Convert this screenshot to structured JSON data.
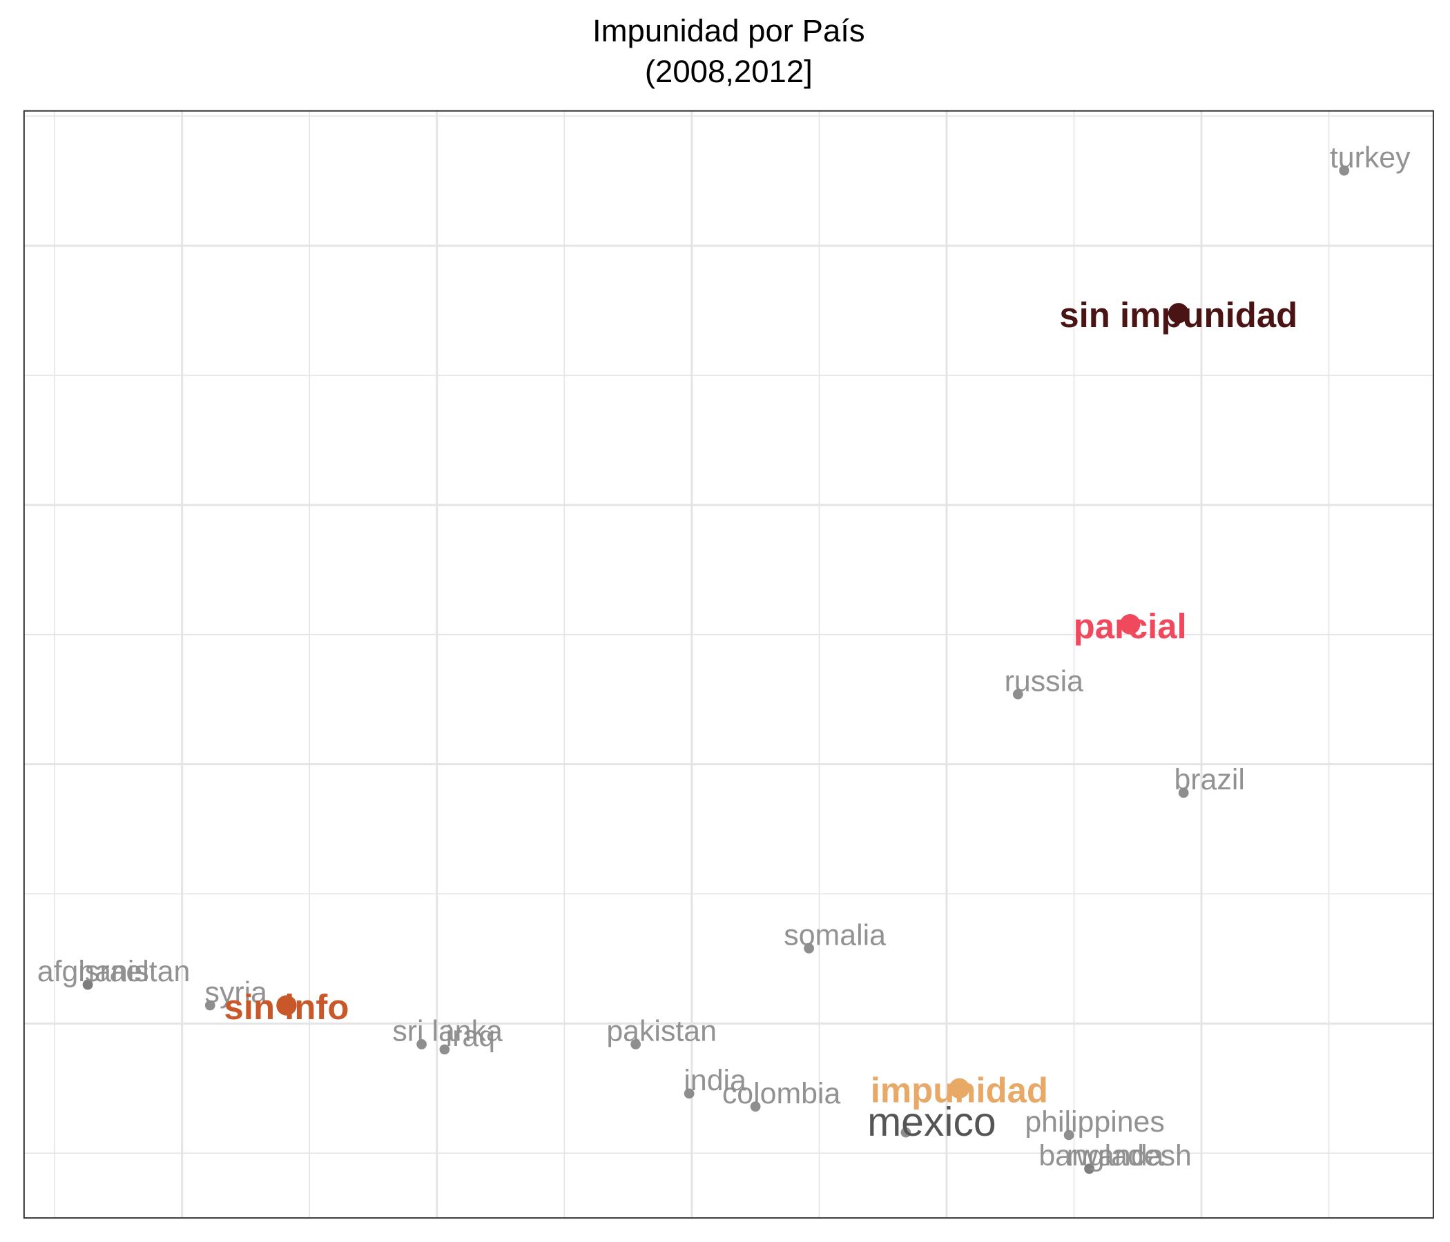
{
  "chart_data": {
    "type": "scatter",
    "title": "Impunidad por País",
    "subtitle": "(2008,2012]",
    "xlim": [
      -2.62,
      2.91
    ],
    "ylim": [
      -1.75,
      2.52
    ],
    "xticks": [
      -2,
      -1,
      0,
      1,
      2
    ],
    "yticks": [
      -1,
      0,
      1,
      2
    ],
    "x_minor_ticks": [
      -2.5,
      -1.5,
      -0.5,
      0.5,
      1.5,
      2.5
    ],
    "y_minor_ticks": [
      -1.5,
      -0.5,
      0.5,
      1.5,
      2.5
    ],
    "grid": true,
    "point_color": "#7a7a7a",
    "points": [
      {
        "label": "turkey",
        "x": 2.56,
        "y": 2.29
      },
      {
        "label": "russia",
        "x": 1.28,
        "y": 0.27
      },
      {
        "label": "brazil",
        "x": 1.93,
        "y": -0.11
      },
      {
        "label": "somalia",
        "x": 0.46,
        "y": -0.71
      },
      {
        "label": "afghanistan",
        "x": -2.37,
        "y": -0.85
      },
      {
        "label": "israel",
        "x": -2.37,
        "y": -0.85
      },
      {
        "label": "syria",
        "x": -1.89,
        "y": -0.93
      },
      {
        "label": "sri lanka",
        "x": -1.06,
        "y": -1.08
      },
      {
        "label": "iraq",
        "x": -0.97,
        "y": -1.1
      },
      {
        "label": "pakistan",
        "x": -0.22,
        "y": -1.08
      },
      {
        "label": "india",
        "x": -0.01,
        "y": -1.27
      },
      {
        "label": "colombia",
        "x": 0.25,
        "y": -1.32
      },
      {
        "label": "mexico",
        "x": 0.84,
        "y": -1.42,
        "highlight": true
      },
      {
        "label": "philippines",
        "x": 1.48,
        "y": -1.43
      },
      {
        "label": "bangladesh",
        "x": 1.56,
        "y": -1.56
      },
      {
        "label": "rwanda",
        "x": 1.56,
        "y": -1.56
      }
    ],
    "groups": [
      {
        "label": "sin impunidad",
        "x": 1.91,
        "y": 1.74,
        "color": "#4a1414"
      },
      {
        "label": "parcial",
        "x": 1.72,
        "y": 0.54,
        "color": "#f0485c"
      },
      {
        "label": "sin info",
        "x": -1.59,
        "y": -0.93,
        "color": "#c8582a"
      },
      {
        "label": "impunidad",
        "x": 1.05,
        "y": -1.25,
        "color": "#e8a866"
      }
    ]
  }
}
